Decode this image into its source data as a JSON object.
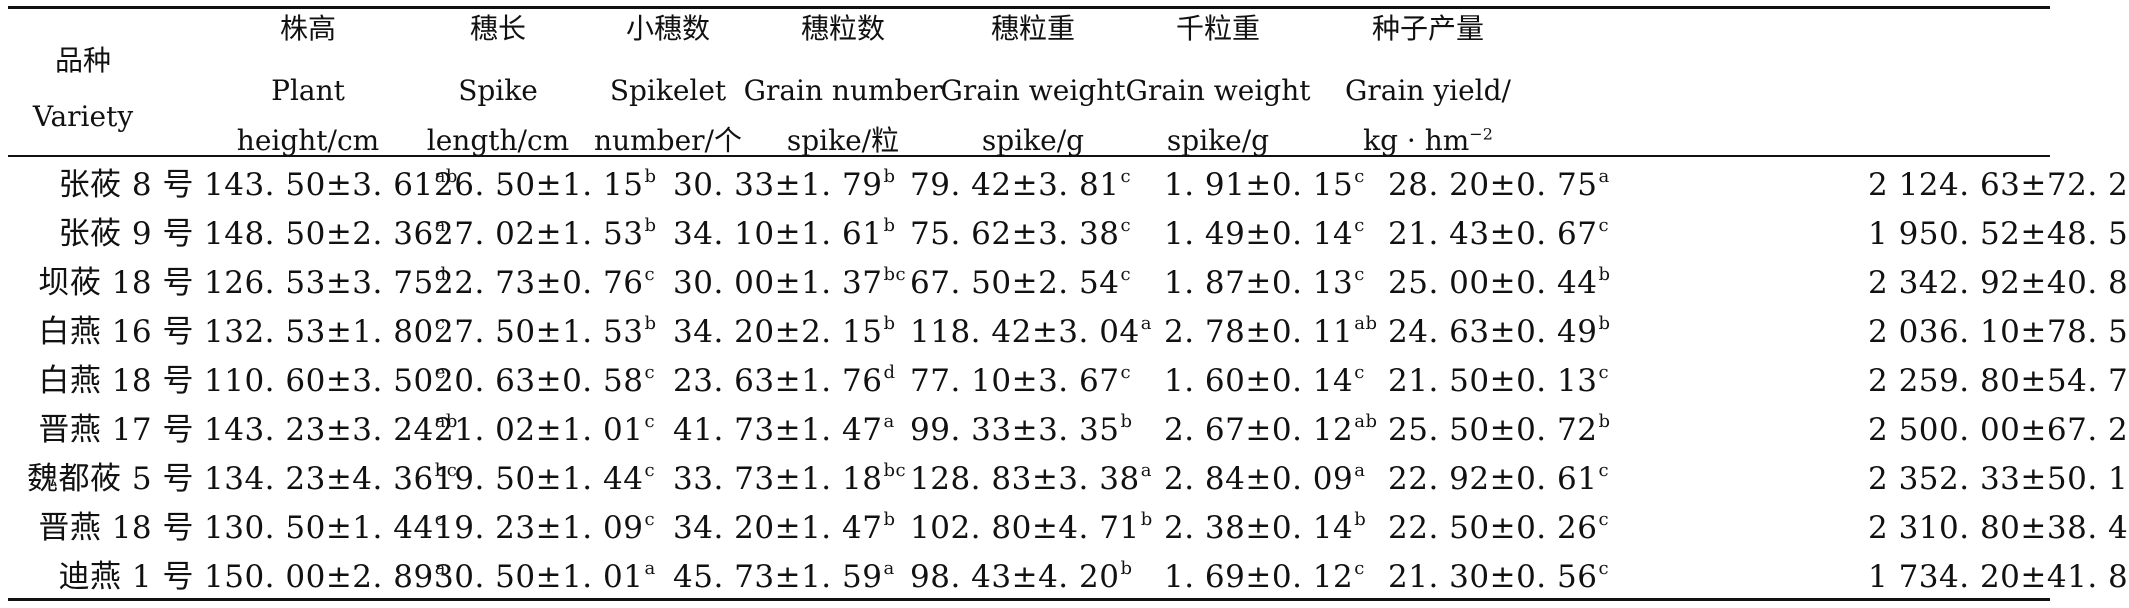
{
  "table": {
    "headers": [
      {
        "zh": "品种",
        "en1": "Variety",
        "en2": ""
      },
      {
        "zh": "株高",
        "en1": "Plant",
        "en2": "height/cm"
      },
      {
        "zh": "穗长",
        "en1": "Spike",
        "en2": "length/cm"
      },
      {
        "zh": "小穗数",
        "en1": "Spikelet",
        "en2": "number/个"
      },
      {
        "zh": "穗粒数",
        "en1": "Grain number",
        "en2": "spike/粒"
      },
      {
        "zh": "穗粒重",
        "en1": "Grain weight",
        "en2": "spike/g"
      },
      {
        "zh": "千粒重",
        "en1": "Grain weight",
        "en2": "spike/g"
      },
      {
        "zh": "种子产量",
        "en1": "Grain yield/",
        "en2": "kg · hm",
        "en2_sup": "−2"
      }
    ],
    "rows": [
      {
        "variety": "张莜 8 号",
        "cells": [
          {
            "v": "143. 50±3. 61",
            "s": "ab"
          },
          {
            "v": "26. 50±1. 15",
            "s": "b"
          },
          {
            "v": "30. 33±1. 79",
            "s": "b"
          },
          {
            "v": "79. 42±3. 81",
            "s": "c"
          },
          {
            "v": "1. 91±0. 15",
            "s": "c"
          },
          {
            "v": "28. 20±0. 75",
            "s": "a"
          },
          {
            "v": "2 124. 63±72. 2",
            "s": ""
          }
        ]
      },
      {
        "variety": "张莜 9 号",
        "cells": [
          {
            "v": "148. 50±2. 36",
            "s": "a"
          },
          {
            "v": "27. 02±1. 53",
            "s": "b"
          },
          {
            "v": "34. 10±1. 61",
            "s": "b"
          },
          {
            "v": "75. 62±3. 38",
            "s": "c"
          },
          {
            "v": "1. 49±0. 14",
            "s": "c"
          },
          {
            "v": "21. 43±0. 67",
            "s": "c"
          },
          {
            "v": "1 950. 52±48. 5",
            "s": ""
          }
        ]
      },
      {
        "variety": "坝莜 18 号",
        "cells": [
          {
            "v": "126. 53±3. 75",
            "s": "d"
          },
          {
            "v": "22. 73±0. 76",
            "s": "c"
          },
          {
            "v": "30. 00±1. 37",
            "s": "bc"
          },
          {
            "v": "67. 50±2. 54",
            "s": "c"
          },
          {
            "v": "1. 87±0. 13",
            "s": "c"
          },
          {
            "v": "25. 00±0. 44",
            "s": "b"
          },
          {
            "v": "2 342. 92±40. 8",
            "s": ""
          }
        ]
      },
      {
        "variety": "白燕 16 号",
        "cells": [
          {
            "v": "132. 53±1. 80",
            "s": "c"
          },
          {
            "v": "27. 50±1. 53",
            "s": "b"
          },
          {
            "v": "34. 20±2. 15",
            "s": "b"
          },
          {
            "v": "118. 42±3. 04",
            "s": "a"
          },
          {
            "v": "2. 78±0. 11",
            "s": "ab"
          },
          {
            "v": "24. 63±0. 49",
            "s": "b"
          },
          {
            "v": "2 036. 10±78. 5",
            "s": ""
          }
        ]
      },
      {
        "variety": "白燕 18 号",
        "cells": [
          {
            "v": "110. 60±3. 50",
            "s": "e"
          },
          {
            "v": "20. 63±0. 58",
            "s": "c"
          },
          {
            "v": "23. 63±1. 76",
            "s": "d"
          },
          {
            "v": "77. 10±3. 67",
            "s": "c"
          },
          {
            "v": "1. 60±0. 14",
            "s": "c"
          },
          {
            "v": "21. 50±0. 13",
            "s": "c"
          },
          {
            "v": "2 259. 80±54. 7",
            "s": ""
          }
        ]
      },
      {
        "variety": "晋燕 17 号",
        "cells": [
          {
            "v": "143. 23±3. 24",
            "s": "ab"
          },
          {
            "v": "21. 02±1. 01",
            "s": "c"
          },
          {
            "v": "41. 73±1. 47",
            "s": "a"
          },
          {
            "v": "99. 33±3. 35",
            "s": "b"
          },
          {
            "v": "2. 67±0. 12",
            "s": "ab"
          },
          {
            "v": "25. 50±0. 72",
            "s": "b"
          },
          {
            "v": "2 500. 00±67. 2",
            "s": ""
          }
        ]
      },
      {
        "variety": "魏都莜 5 号",
        "cells": [
          {
            "v": "134. 23±4. 36",
            "s": "bc"
          },
          {
            "v": "19. 50±1. 44",
            "s": "c"
          },
          {
            "v": "33. 73±1. 18",
            "s": "bc"
          },
          {
            "v": "128. 83±3. 38",
            "s": "a"
          },
          {
            "v": "2. 84±0. 09",
            "s": "a"
          },
          {
            "v": "22. 92±0. 61",
            "s": "c"
          },
          {
            "v": "2 352. 33±50. 1",
            "s": ""
          }
        ]
      },
      {
        "variety": "晋燕 18 号",
        "cells": [
          {
            "v": "130. 50±1. 44",
            "s": "c"
          },
          {
            "v": "19. 23±1. 09",
            "s": "c"
          },
          {
            "v": "34. 20±1. 47",
            "s": "b"
          },
          {
            "v": "102. 80±4. 71",
            "s": "b"
          },
          {
            "v": "2. 38±0. 14",
            "s": "b"
          },
          {
            "v": "22. 50±0. 26",
            "s": "c"
          },
          {
            "v": "2 310. 80±38. 4",
            "s": ""
          }
        ]
      },
      {
        "variety": "迪燕 1 号",
        "cells": [
          {
            "v": "150. 00±2. 89",
            "s": "a"
          },
          {
            "v": "30. 50±1. 01",
            "s": "a"
          },
          {
            "v": "45. 73±1. 59",
            "s": "a"
          },
          {
            "v": "98. 43±4. 20",
            "s": "b"
          },
          {
            "v": "1. 69±0. 12",
            "s": "c"
          },
          {
            "v": "21. 30±0. 56",
            "s": "c"
          },
          {
            "v": "1 734. 20±41. 8",
            "s": ""
          }
        ]
      }
    ]
  }
}
